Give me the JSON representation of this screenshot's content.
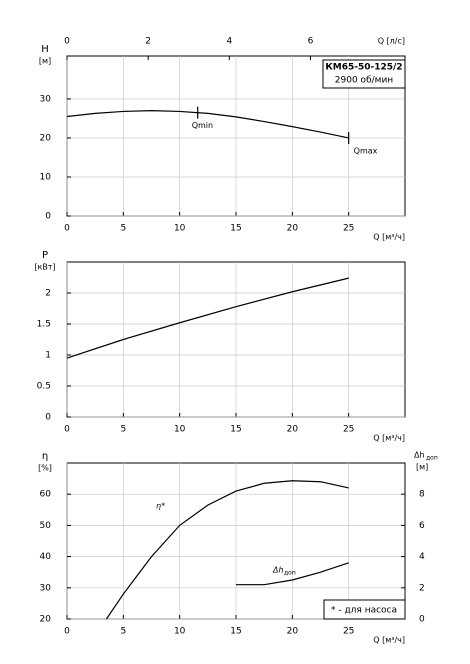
{
  "chart_data": [
    {
      "type": "line",
      "ylabel": "H",
      "yunit": "[м]",
      "xlabel": "Q [м³/ч]",
      "x2label": "Q [л/с]",
      "xlim": [
        0,
        30
      ],
      "xticks": [
        0,
        5,
        10,
        15,
        20,
        25
      ],
      "x2lim": [
        0,
        8.33
      ],
      "x2ticks": [
        0,
        2,
        4,
        6
      ],
      "ylim": [
        0,
        41
      ],
      "yticks": [
        0,
        10,
        20,
        30
      ],
      "grid": true,
      "model": "КМ65-50-125/2",
      "speed": "2900 об/мин",
      "markers": [
        {
          "label": "Qmin",
          "x": 11.6
        },
        {
          "label": "Qmax",
          "x": 25
        }
      ],
      "series": [
        {
          "color": "#000000",
          "x": [
            0,
            2.5,
            5,
            7.5,
            10,
            12.5,
            15,
            17.5,
            20,
            22.5,
            25
          ],
          "values": [
            25.5,
            26.3,
            26.8,
            27,
            26.8,
            26.3,
            25.4,
            24.2,
            22.9,
            21.5,
            20
          ]
        }
      ]
    },
    {
      "type": "line",
      "ylabel": "P",
      "yunit": "[кВт]",
      "xlabel": "Q [м³/ч]",
      "xlim": [
        0,
        30
      ],
      "xticks": [
        0,
        5,
        10,
        15,
        20,
        25
      ],
      "ylim": [
        0,
        2.5
      ],
      "yticks": [
        0,
        0.5,
        1,
        1.5,
        2
      ],
      "grid": true,
      "series": [
        {
          "color": "#000000",
          "x": [
            0,
            5,
            10,
            15,
            20,
            25
          ],
          "values": [
            0.95,
            1.25,
            1.52,
            1.78,
            2.02,
            2.24
          ]
        }
      ]
    },
    {
      "type": "line",
      "ylabel": "η",
      "yunit": "[%]",
      "y2label": "Δh",
      "y2label_sub": "доп",
      "y2unit": "[м]",
      "xlabel": "Q [м³/ч]",
      "xlim": [
        0,
        30
      ],
      "xticks": [
        0,
        5,
        10,
        15,
        20,
        25
      ],
      "ylim": [
        20,
        70
      ],
      "yticks": [
        20,
        30,
        40,
        50,
        60
      ],
      "y2lim": [
        0,
        10
      ],
      "y2ticks": [
        0,
        2,
        4,
        6,
        8
      ],
      "grid": true,
      "footnote": "* - для насоса",
      "series": [
        {
          "label": "η*",
          "color": "#000000",
          "x": [
            3.5,
            5,
            7.5,
            10,
            12.5,
            15,
            17.5,
            20,
            22.5,
            25
          ],
          "values": [
            20,
            28,
            40,
            50,
            56.5,
            61,
            63.5,
            64.3,
            64,
            62
          ]
        },
        {
          "label": "Δh",
          "label_sub": "доп",
          "axis": "y2",
          "color": "#000000",
          "x": [
            15,
            17.5,
            20,
            22.5,
            25
          ],
          "values": [
            2.2,
            2.2,
            2.5,
            3.0,
            3.6
          ]
        }
      ]
    }
  ]
}
